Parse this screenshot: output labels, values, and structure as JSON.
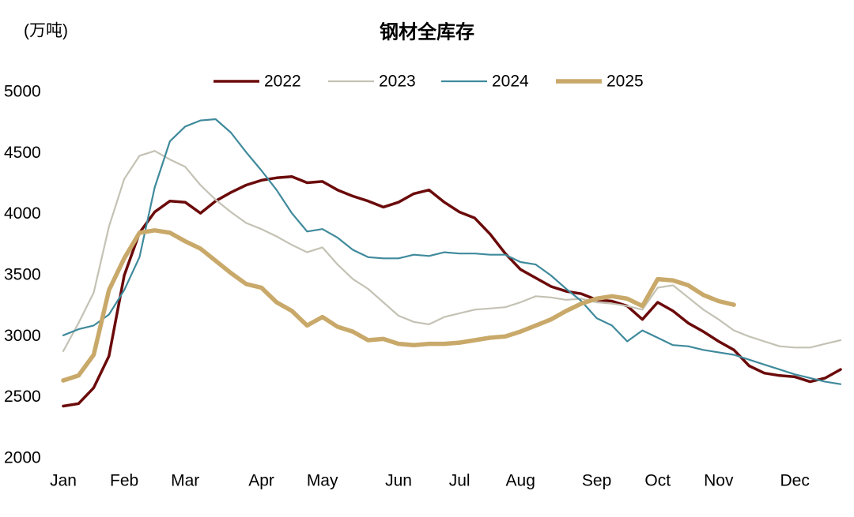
{
  "chart_data": {
    "type": "line",
    "title": "钢材全库存",
    "y_label": "(万吨)",
    "categories": [
      "Jan",
      null,
      null,
      null,
      "Feb",
      null,
      null,
      null,
      "Mar",
      null,
      null,
      null,
      null,
      "Apr",
      null,
      null,
      null,
      "May",
      null,
      null,
      null,
      null,
      "Jun",
      null,
      null,
      null,
      "Jul",
      null,
      null,
      null,
      "Aug",
      null,
      null,
      null,
      null,
      "Sep",
      null,
      null,
      null,
      "Oct",
      null,
      null,
      null,
      "Nov",
      null,
      null,
      null,
      null,
      "Dec",
      null,
      null,
      null
    ],
    "series": [
      {
        "name": "2022",
        "color": "#6b0a0a",
        "values": [
          2430,
          2450,
          2580,
          2840,
          3500,
          3850,
          4020,
          4110,
          4100,
          4010,
          4110,
          4180,
          4240,
          4280,
          4300,
          4310,
          4260,
          4270,
          4200,
          4150,
          4110,
          4060,
          4100,
          4170,
          4200,
          4100,
          4020,
          3970,
          3840,
          3680,
          3550,
          3480,
          3410,
          3370,
          3350,
          3300,
          3290,
          3250,
          3140,
          3280,
          3210,
          3110,
          3040,
          2960,
          2890,
          2760,
          2700,
          2680,
          2670,
          2630,
          2660,
          2730
        ]
      },
      {
        "name": "2023",
        "color": "#c4c2b4",
        "values": [
          2880,
          3110,
          3360,
          3900,
          4290,
          4480,
          4520,
          4450,
          4390,
          4240,
          4120,
          4020,
          3930,
          3880,
          3820,
          3750,
          3690,
          3730,
          3590,
          3470,
          3390,
          3280,
          3170,
          3120,
          3100,
          3160,
          3190,
          3220,
          3230,
          3240,
          3280,
          3330,
          3320,
          3300,
          3310,
          3280,
          3270,
          3250,
          3220,
          3400,
          3420,
          3320,
          3220,
          3140,
          3050,
          3000,
          2960,
          2920,
          2910,
          2910,
          2940,
          2970
        ]
      },
      {
        "name": "2024",
        "color": "#3f8a9c",
        "values": [
          3010,
          3060,
          3090,
          3180,
          3380,
          3650,
          4220,
          4600,
          4720,
          4770,
          4780,
          4670,
          4510,
          4360,
          4200,
          4010,
          3860,
          3880,
          3810,
          3710,
          3650,
          3640,
          3640,
          3670,
          3660,
          3690,
          3680,
          3680,
          3670,
          3670,
          3610,
          3590,
          3500,
          3390,
          3290,
          3150,
          3090,
          2960,
          3050,
          2990,
          2930,
          2920,
          2890,
          2870,
          2850,
          2810,
          2770,
          2730,
          2690,
          2660,
          2630,
          2610
        ]
      },
      {
        "name": "2025",
        "color": "#c9a96a",
        "values": [
          2640,
          2680,
          2850,
          3380,
          3640,
          3850,
          3870,
          3850,
          3780,
          3720,
          3620,
          3520,
          3430,
          3400,
          3280,
          3210,
          3090,
          3160,
          3080,
          3040,
          2970,
          2980,
          2940,
          2930,
          2940,
          2940,
          2950,
          2970,
          2990,
          3000,
          3040,
          3090,
          3140,
          3210,
          3270,
          3310,
          3330,
          3310,
          3250,
          3470,
          3460,
          3420,
          3340,
          3290,
          3260,
          null,
          null,
          null,
          null,
          null,
          null,
          null
        ]
      }
    ],
    "ylim": [
      2000,
      5000
    ],
    "yticks": [
      2000,
      2500,
      3000,
      3500,
      4000,
      4500,
      5000
    ],
    "grid": false,
    "legend": "top"
  }
}
